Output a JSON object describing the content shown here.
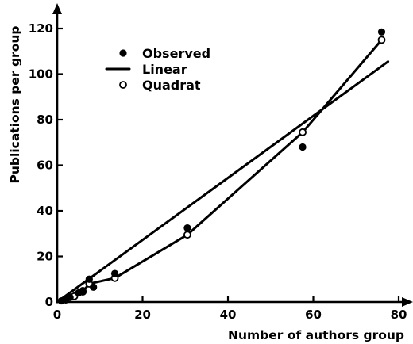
{
  "chart_data": {
    "type": "scatter",
    "title": "",
    "xlabel": "Number of authors group",
    "ylabel": "Publications per group",
    "xlim": [
      0,
      80
    ],
    "ylim": [
      0,
      120
    ],
    "x_ticks": [
      "0",
      "20",
      "40",
      "60",
      "80"
    ],
    "y_ticks": [
      "0",
      "20",
      "40",
      "60",
      "80",
      "100",
      "120"
    ],
    "grid": false,
    "legend_position": "top-left",
    "series": [
      {
        "name": "Observed",
        "style": "filled-circle",
        "points": [
          {
            "x": 1,
            "y": 0.5
          },
          {
            "x": 2,
            "y": 1
          },
          {
            "x": 3,
            "y": 2
          },
          {
            "x": 5,
            "y": 4
          },
          {
            "x": 6,
            "y": 5
          },
          {
            "x": 7.5,
            "y": 10
          },
          {
            "x": 8.5,
            "y": 6.5
          },
          {
            "x": 13.5,
            "y": 12.5
          },
          {
            "x": 30.5,
            "y": 32.5
          },
          {
            "x": 57.5,
            "y": 68
          },
          {
            "x": 76,
            "y": 118.5
          }
        ]
      },
      {
        "name": "Linear",
        "style": "line",
        "points": [
          {
            "x": 0,
            "y": 0
          },
          {
            "x": 77.5,
            "y": 105.5
          }
        ]
      },
      {
        "name": "Quadrat",
        "style": "open-circle",
        "points": [
          {
            "x": 0,
            "y": 0
          },
          {
            "x": 2,
            "y": 1
          },
          {
            "x": 4,
            "y": 2.5
          },
          {
            "x": 6,
            "y": 4.5
          },
          {
            "x": 7.5,
            "y": 8
          },
          {
            "x": 13.5,
            "y": 10.5
          },
          {
            "x": 30.5,
            "y": 29.5
          },
          {
            "x": 57.5,
            "y": 74.5
          },
          {
            "x": 76,
            "y": 115
          }
        ]
      }
    ]
  }
}
